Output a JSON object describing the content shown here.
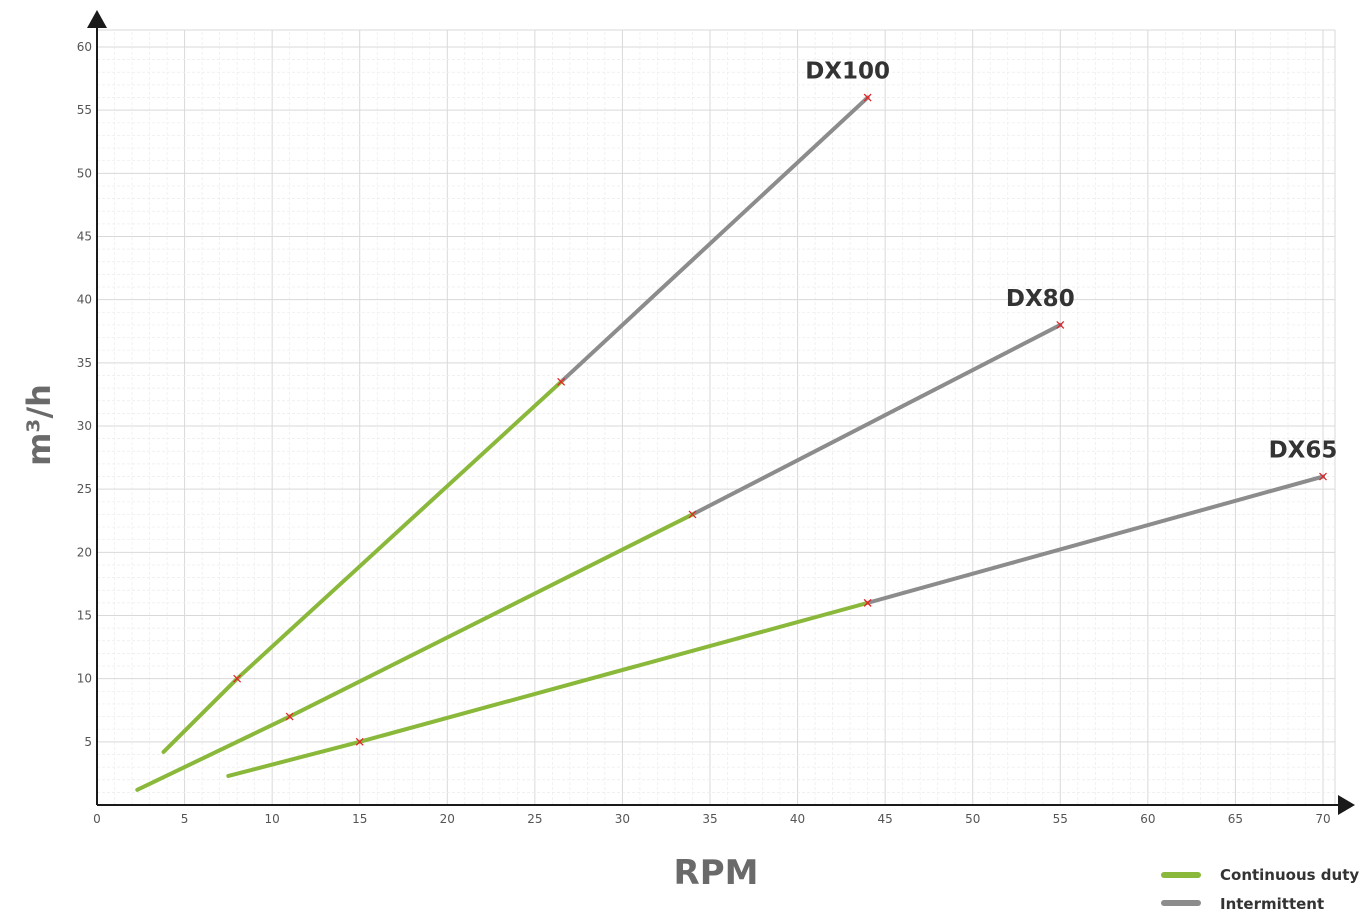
{
  "chart_data": {
    "type": "line",
    "xlabel": "RPM",
    "ylabel": "m³/h",
    "xlim": [
      0,
      70
    ],
    "ylim": [
      0,
      60
    ],
    "x_ticks": [
      "0",
      "5",
      "10",
      "15",
      "20",
      "25",
      "30",
      "35",
      "40",
      "45",
      "50",
      "55",
      "60",
      "65",
      "70"
    ],
    "y_ticks": [
      "5",
      "10",
      "15",
      "20",
      "25",
      "30",
      "35",
      "40",
      "45",
      "50",
      "55",
      "60"
    ],
    "grid": true,
    "legend": {
      "position": "bottom-right",
      "items": [
        {
          "label": "Continuous duty",
          "color": "#8ab83a"
        },
        {
          "label": "Intermittent",
          "color": "#8c8c8c"
        }
      ]
    },
    "series": [
      {
        "name": "DX100",
        "continuous": [
          [
            3.8,
            4.2
          ],
          [
            8,
            10
          ],
          [
            26.5,
            33.5
          ]
        ],
        "intermittent": [
          [
            26.5,
            33.5
          ],
          [
            44,
            56
          ]
        ],
        "markers": [
          [
            8,
            10
          ],
          [
            26.5,
            33.5
          ],
          [
            44,
            56
          ]
        ]
      },
      {
        "name": "DX80",
        "continuous": [
          [
            2.3,
            1.2
          ],
          [
            11,
            7
          ],
          [
            34,
            23
          ]
        ],
        "intermittent": [
          [
            34,
            23
          ],
          [
            55,
            38
          ]
        ],
        "markers": [
          [
            11,
            7
          ],
          [
            34,
            23
          ],
          [
            55,
            38
          ]
        ]
      },
      {
        "name": "DX65",
        "continuous": [
          [
            7.5,
            2.3
          ],
          [
            15,
            5
          ],
          [
            44,
            16
          ]
        ],
        "intermittent": [
          [
            44,
            16
          ],
          [
            70,
            26
          ]
        ],
        "markers": [
          [
            15,
            5
          ],
          [
            44,
            16
          ],
          [
            70,
            26
          ]
        ]
      }
    ],
    "colors": {
      "continuous": "#8ab83a",
      "intermittent": "#8c8c8c",
      "marker": "#e0262b",
      "axis": "#1a1a1a",
      "grid_major": "#d9d9d9",
      "grid_minor": "#ececec"
    }
  }
}
